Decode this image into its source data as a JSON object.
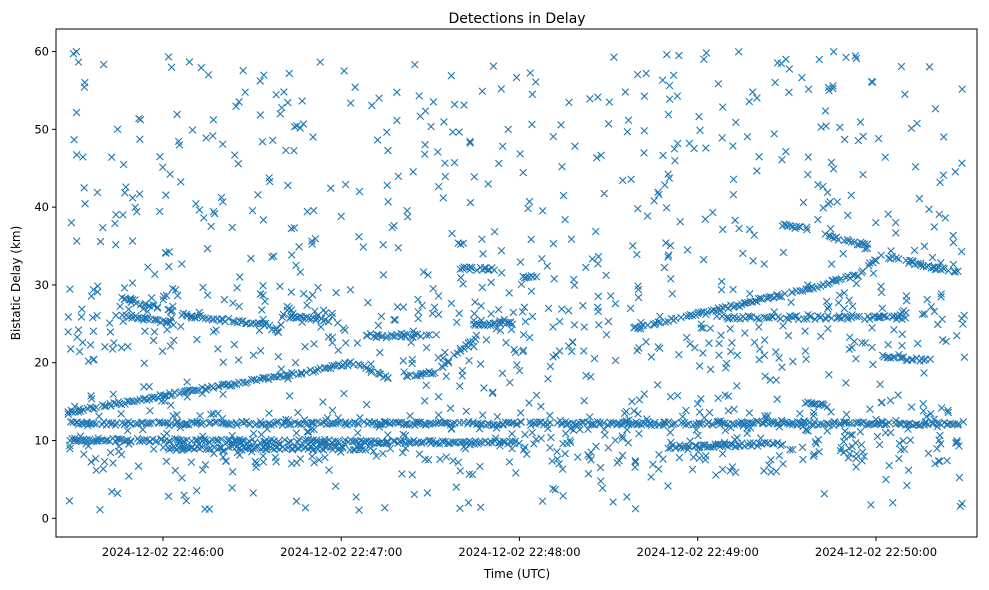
{
  "chart_data": {
    "type": "scatter",
    "title": "Detections in Delay",
    "xlabel": "Time (UTC)",
    "ylabel": "Bistatic Delay (km)",
    "x_unit": "time",
    "xlim": [
      "2024-12-02 22:45:24",
      "2024-12-02 22:50:34"
    ],
    "ylim": [
      -2.4,
      62.9
    ],
    "x_ticks": [
      "2024-12-02 22:46:00",
      "2024-12-02 22:47:00",
      "2024-12-02 22:48:00",
      "2024-12-02 22:49:00",
      "2024-12-02 22:50:00"
    ],
    "y_ticks": [
      0,
      10,
      20,
      30,
      40,
      50,
      60
    ],
    "marker": "x",
    "grid": false,
    "legend": "none",
    "series_color": "#1f77b4",
    "tracks_description": "Approximate visible track-like bands of detections, as [start_time, start_delay, end_time, end_delay]",
    "tracks": [
      [
        "2024-12-02 22:45:28",
        13.7,
        "2024-12-02 22:46:54",
        19.2
      ],
      [
        "2024-12-02 22:46:54",
        19.2,
        "2024-12-02 22:47:04",
        20.0
      ],
      [
        "2024-12-02 22:47:04",
        20.0,
        "2024-12-02 22:47:16",
        18.0
      ],
      [
        "2024-12-02 22:47:21",
        18.2,
        "2024-12-02 22:47:32",
        18.8
      ],
      [
        "2024-12-02 22:47:34",
        19.5,
        "2024-12-02 22:47:46",
        23.5
      ],
      [
        "2024-12-02 22:48:38",
        24.3,
        "2024-12-02 22:49:34",
        29.2
      ],
      [
        "2024-12-02 22:49:34",
        29.2,
        "2024-12-02 22:49:54",
        31.3
      ],
      [
        "2024-12-02 22:49:54",
        31.3,
        "2024-12-02 22:50:02",
        34.0
      ],
      [
        "2024-12-02 22:50:04",
        33.6,
        "2024-12-02 22:50:28",
        31.5
      ],
      [
        "2024-12-02 22:45:46",
        28.3,
        "2024-12-02 22:46:04",
        26.5
      ],
      [
        "2024-12-02 22:45:46",
        26.2,
        "2024-12-02 22:46:04",
        25.0
      ],
      [
        "2024-12-02 22:46:06",
        26.2,
        "2024-12-02 22:46:36",
        24.8
      ],
      [
        "2024-12-02 22:46:40",
        26.0,
        "2024-12-02 22:46:56",
        25.4
      ],
      [
        "2024-12-02 22:47:08",
        23.5,
        "2024-12-02 22:47:26",
        23.5
      ],
      [
        "2024-12-02 22:47:44",
        25.0,
        "2024-12-02 22:47:58",
        25.0
      ],
      [
        "2024-12-02 22:48:00",
        31.0,
        "2024-12-02 22:48:06",
        31.0
      ],
      [
        "2024-12-02 22:47:40",
        32.2,
        "2024-12-02 22:47:52",
        32.0
      ],
      [
        "2024-12-02 22:49:08",
        25.8,
        "2024-12-02 22:50:10",
        25.8
      ],
      [
        "2024-12-02 22:49:28",
        37.8,
        "2024-12-02 22:49:38",
        37.0
      ],
      [
        "2024-12-02 22:49:44",
        36.2,
        "2024-12-02 22:49:58",
        35.0
      ],
      [
        "2024-12-02 22:50:02",
        20.8,
        "2024-12-02 22:50:18",
        20.3
      ],
      [
        "2024-12-02 22:49:36",
        14.8,
        "2024-12-02 22:49:44",
        14.5
      ],
      [
        "2024-12-02 22:45:28",
        12.2,
        "2024-12-02 22:50:30",
        12.2
      ],
      [
        "2024-12-02 22:45:28",
        10.1,
        "2024-12-02 22:48:00",
        9.7
      ],
      [
        "2024-12-02 22:46:00",
        9.0,
        "2024-12-02 22:47:10",
        9.0
      ],
      [
        "2024-12-02 22:48:50",
        9.2,
        "2024-12-02 22:49:30",
        9.6
      ]
    ],
    "approximate_point_count": 1750
  }
}
